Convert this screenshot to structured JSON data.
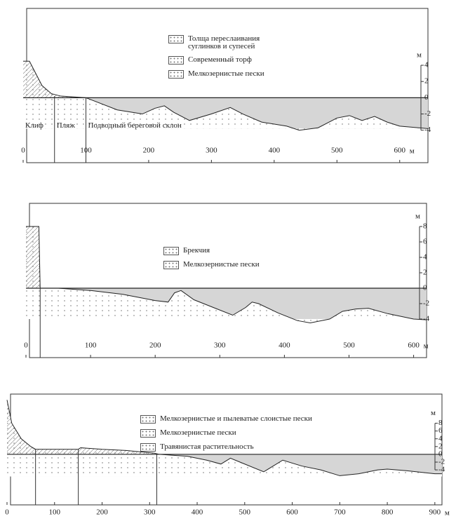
{
  "chart_data": [
    {
      "type": "profile",
      "x_label": "м",
      "y_label": "м",
      "legend": [
        "Толща переслаивания суглинков и супесей",
        "Современный торф",
        "Мелкозернистые пески"
      ],
      "zones": [
        "Клиф",
        "Пляж",
        "Подводный береговой склон"
      ],
      "dividers": [
        50,
        100
      ],
      "x": [
        0,
        10,
        20,
        30,
        45,
        60,
        100,
        150,
        190,
        210,
        225,
        240,
        265,
        300,
        330,
        350,
        380,
        420,
        440,
        470,
        500,
        520,
        540,
        560,
        580,
        600,
        645
      ],
      "values": [
        4.5,
        4.5,
        3,
        1.5,
        0.5,
        0.2,
        0,
        -1.5,
        -2,
        -1.3,
        -1,
        -1.8,
        -2.8,
        -2,
        -1.2,
        -2,
        -3,
        -3.5,
        -4,
        -3.7,
        -2.5,
        -2.2,
        -2.8,
        -2.3,
        -3,
        -3.5,
        -3.8
      ],
      "xlim": [
        0,
        645
      ],
      "ylim": [
        -8,
        11
      ],
      "xticks": [
        0,
        100,
        200,
        300,
        400,
        500,
        600
      ],
      "yticks": [
        4,
        2,
        0,
        -2,
        -4
      ]
    },
    {
      "type": "profile",
      "x_label": "м",
      "y_label": "м",
      "legend": [
        "Брекчия",
        "Мелкозернистые пески"
      ],
      "dividers": [
        22
      ],
      "x": [
        0,
        20,
        22,
        50,
        100,
        150,
        200,
        220,
        230,
        240,
        260,
        290,
        320,
        340,
        350,
        360,
        390,
        420,
        440,
        470,
        490,
        510,
        530,
        560,
        600,
        620
      ],
      "values": [
        8,
        8,
        0,
        0,
        -0.3,
        -0.8,
        -1.6,
        -1.8,
        -0.6,
        -0.3,
        -1.5,
        -2.5,
        -3.5,
        -2.5,
        -1.8,
        -2,
        -3.2,
        -4.2,
        -4.5,
        -4,
        -3,
        -2.7,
        -2.6,
        -3.3,
        -4,
        -4.1
      ],
      "xlim": [
        0,
        620
      ],
      "ylim": [
        -9,
        11
      ],
      "xticks": [
        0,
        100,
        200,
        300,
        400,
        500,
        600
      ],
      "yticks": [
        8,
        6,
        4,
        2,
        0,
        -2,
        -4
      ]
    },
    {
      "type": "profile",
      "x_label": "м",
      "y_label": "м",
      "legend": [
        "Мелкозернистые и пылеватые слоистые пески",
        "Мелкозернистые пески",
        "Травянистая растительность"
      ],
      "dividers": [
        60,
        150,
        315
      ],
      "x": [
        0,
        10,
        30,
        50,
        60,
        150,
        155,
        200,
        250,
        310,
        320,
        380,
        420,
        450,
        470,
        490,
        540,
        580,
        620,
        660,
        700,
        740,
        780,
        800,
        840,
        900,
        915
      ],
      "values": [
        14,
        8,
        4,
        2,
        1.3,
        1.3,
        1.7,
        1.3,
        1,
        0.3,
        0,
        -0.5,
        -1.5,
        -2.5,
        -1,
        -2,
        -4.5,
        -1.5,
        -3,
        -4,
        -5.5,
        -5,
        -4,
        -3.8,
        -4.2,
        -5,
        -5
      ],
      "xlim": [
        0,
        915
      ],
      "ylim": [
        -13,
        15.5
      ],
      "xticks": [
        0,
        100,
        200,
        300,
        400,
        500,
        600,
        700,
        800,
        900
      ],
      "yticks": [
        8,
        6,
        4,
        2,
        0,
        -2,
        -4
      ]
    }
  ]
}
